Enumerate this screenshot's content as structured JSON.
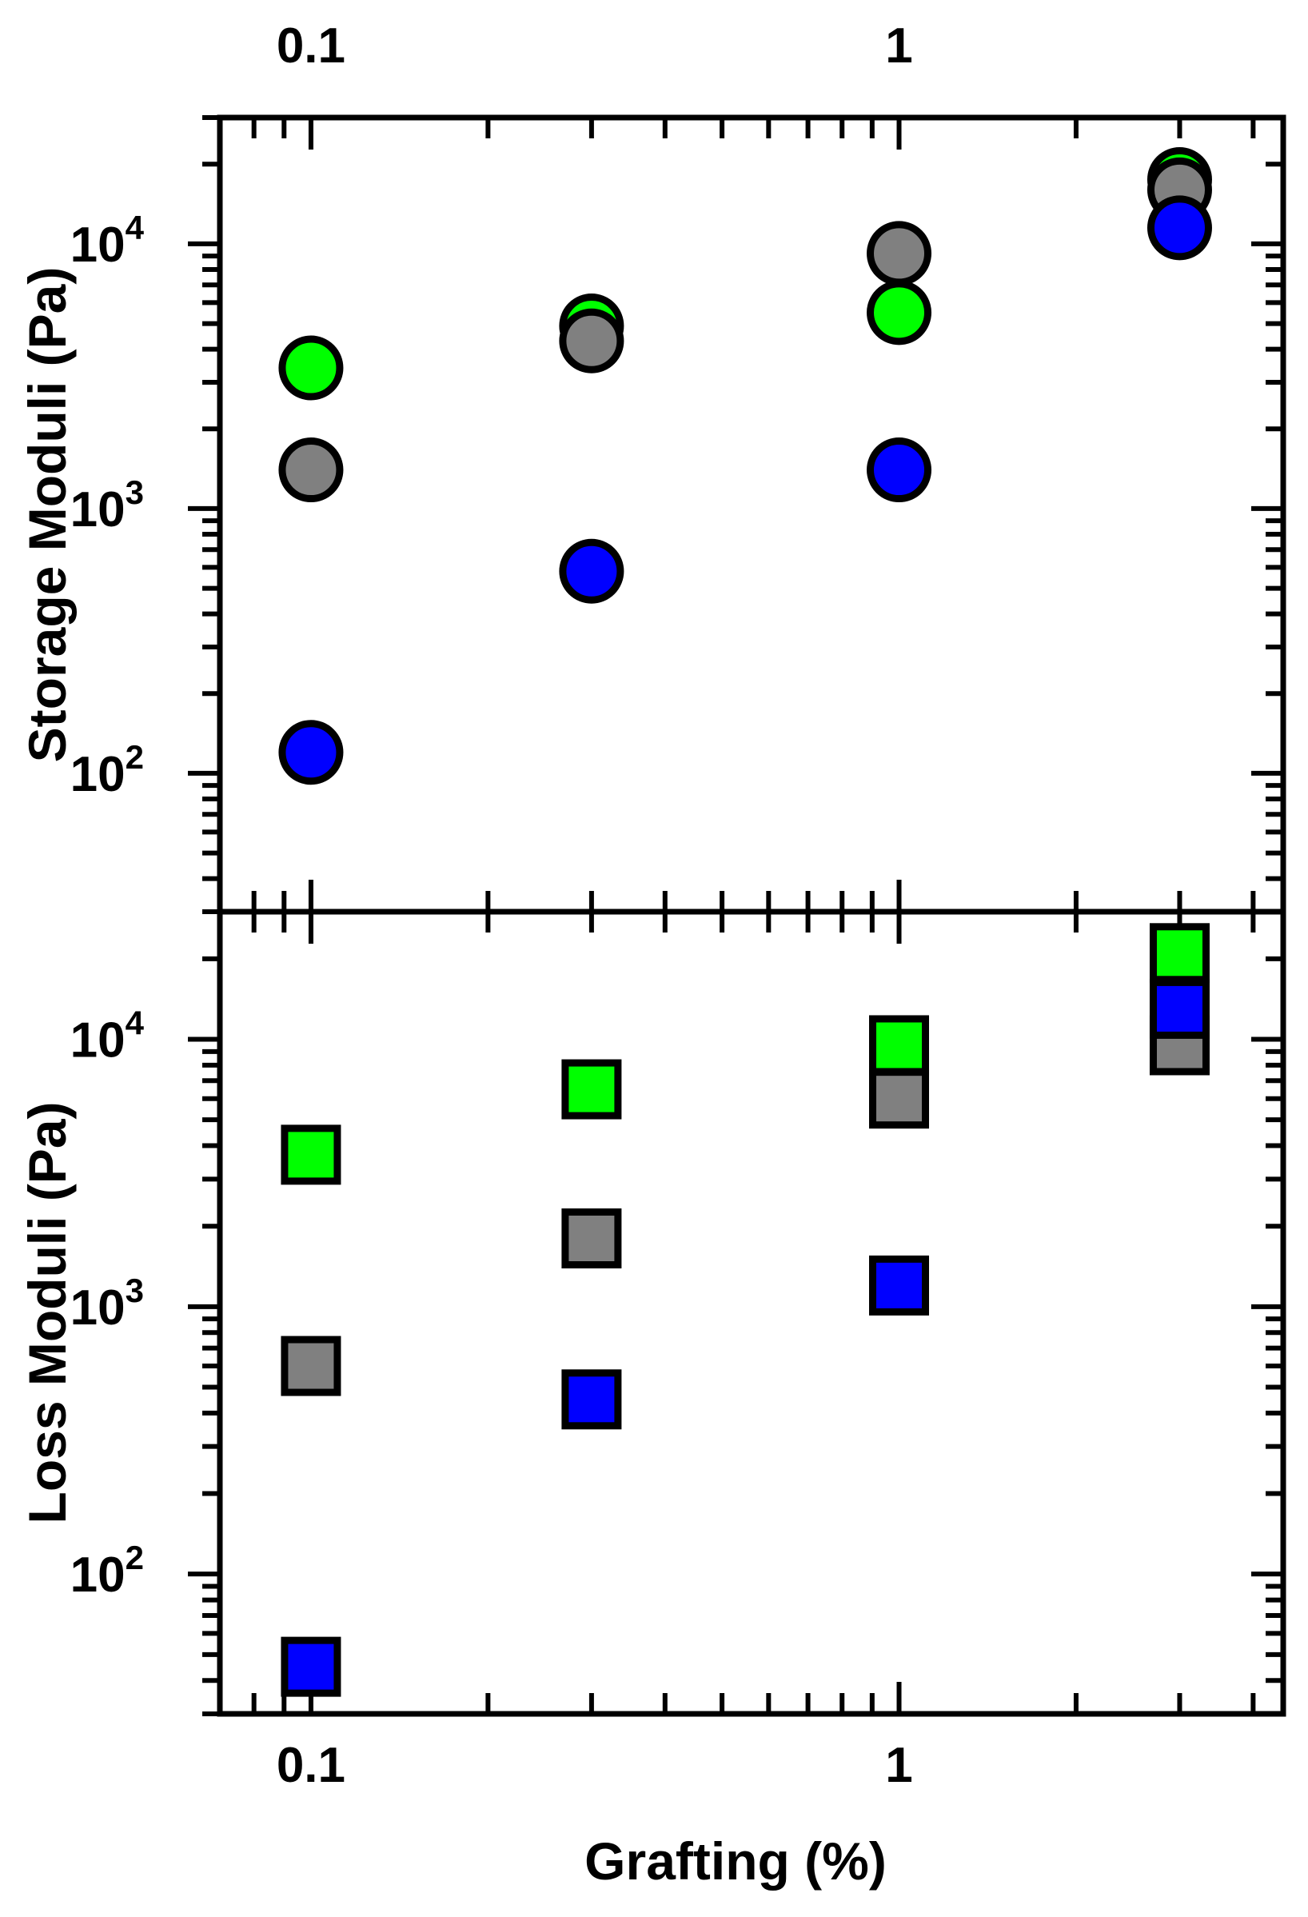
{
  "chart_data": [
    {
      "type": "scatter",
      "panel": "top",
      "marker": "circle",
      "ylabel": "Storage Moduli (Pa)",
      "xlabel": "",
      "xscale": "log",
      "yscale": "log",
      "xlim": [
        0.07,
        4.5
      ],
      "ylim": [
        30,
        30000
      ],
      "x_ticks": [
        "0.1",
        "1"
      ],
      "y_ticks": [
        {
          "value": 100,
          "base": "10",
          "exp": "2"
        },
        {
          "value": 1000,
          "base": "10",
          "exp": "3"
        },
        {
          "value": 10000,
          "base": "10",
          "exp": "4"
        }
      ],
      "grid": false,
      "series": [
        {
          "color": "#00ff00",
          "x": [
            0.1,
            0.3,
            1,
            3
          ],
          "y": [
            3400,
            4900,
            5500,
            17500
          ]
        },
        {
          "color": "#808080",
          "x": [
            0.1,
            0.3,
            1,
            3
          ],
          "y": [
            1400,
            4300,
            9200,
            16000
          ]
        },
        {
          "color": "#0000ff",
          "x": [
            0.1,
            0.3,
            1,
            3
          ],
          "y": [
            120,
            580,
            1400,
            11500
          ]
        }
      ]
    },
    {
      "type": "scatter",
      "panel": "bottom",
      "marker": "square",
      "ylabel": "Loss Moduli (Pa)",
      "xlabel": "Grafting (%)",
      "xscale": "log",
      "yscale": "log",
      "xlim": [
        0.07,
        4.5
      ],
      "ylim": [
        30,
        30000
      ],
      "x_ticks": [
        "0.1",
        "1"
      ],
      "y_ticks": [
        {
          "value": 100,
          "base": "10",
          "exp": "2"
        },
        {
          "value": 1000,
          "base": "10",
          "exp": "3"
        },
        {
          "value": 10000,
          "base": "10",
          "exp": "4"
        }
      ],
      "grid": false,
      "series": [
        {
          "color": "#00ff00",
          "x": [
            0.1,
            0.3,
            1,
            3
          ],
          "y": [
            3700,
            6500,
            9500,
            21000
          ]
        },
        {
          "color": "#808080",
          "x": [
            0.1,
            0.3,
            1,
            3
          ],
          "y": [
            600,
            1800,
            6000,
            9500
          ]
        },
        {
          "color": "#0000ff",
          "x": [
            0.1,
            0.3,
            1,
            3
          ],
          "y": [
            45,
            450,
            1200,
            13000
          ]
        }
      ]
    }
  ]
}
